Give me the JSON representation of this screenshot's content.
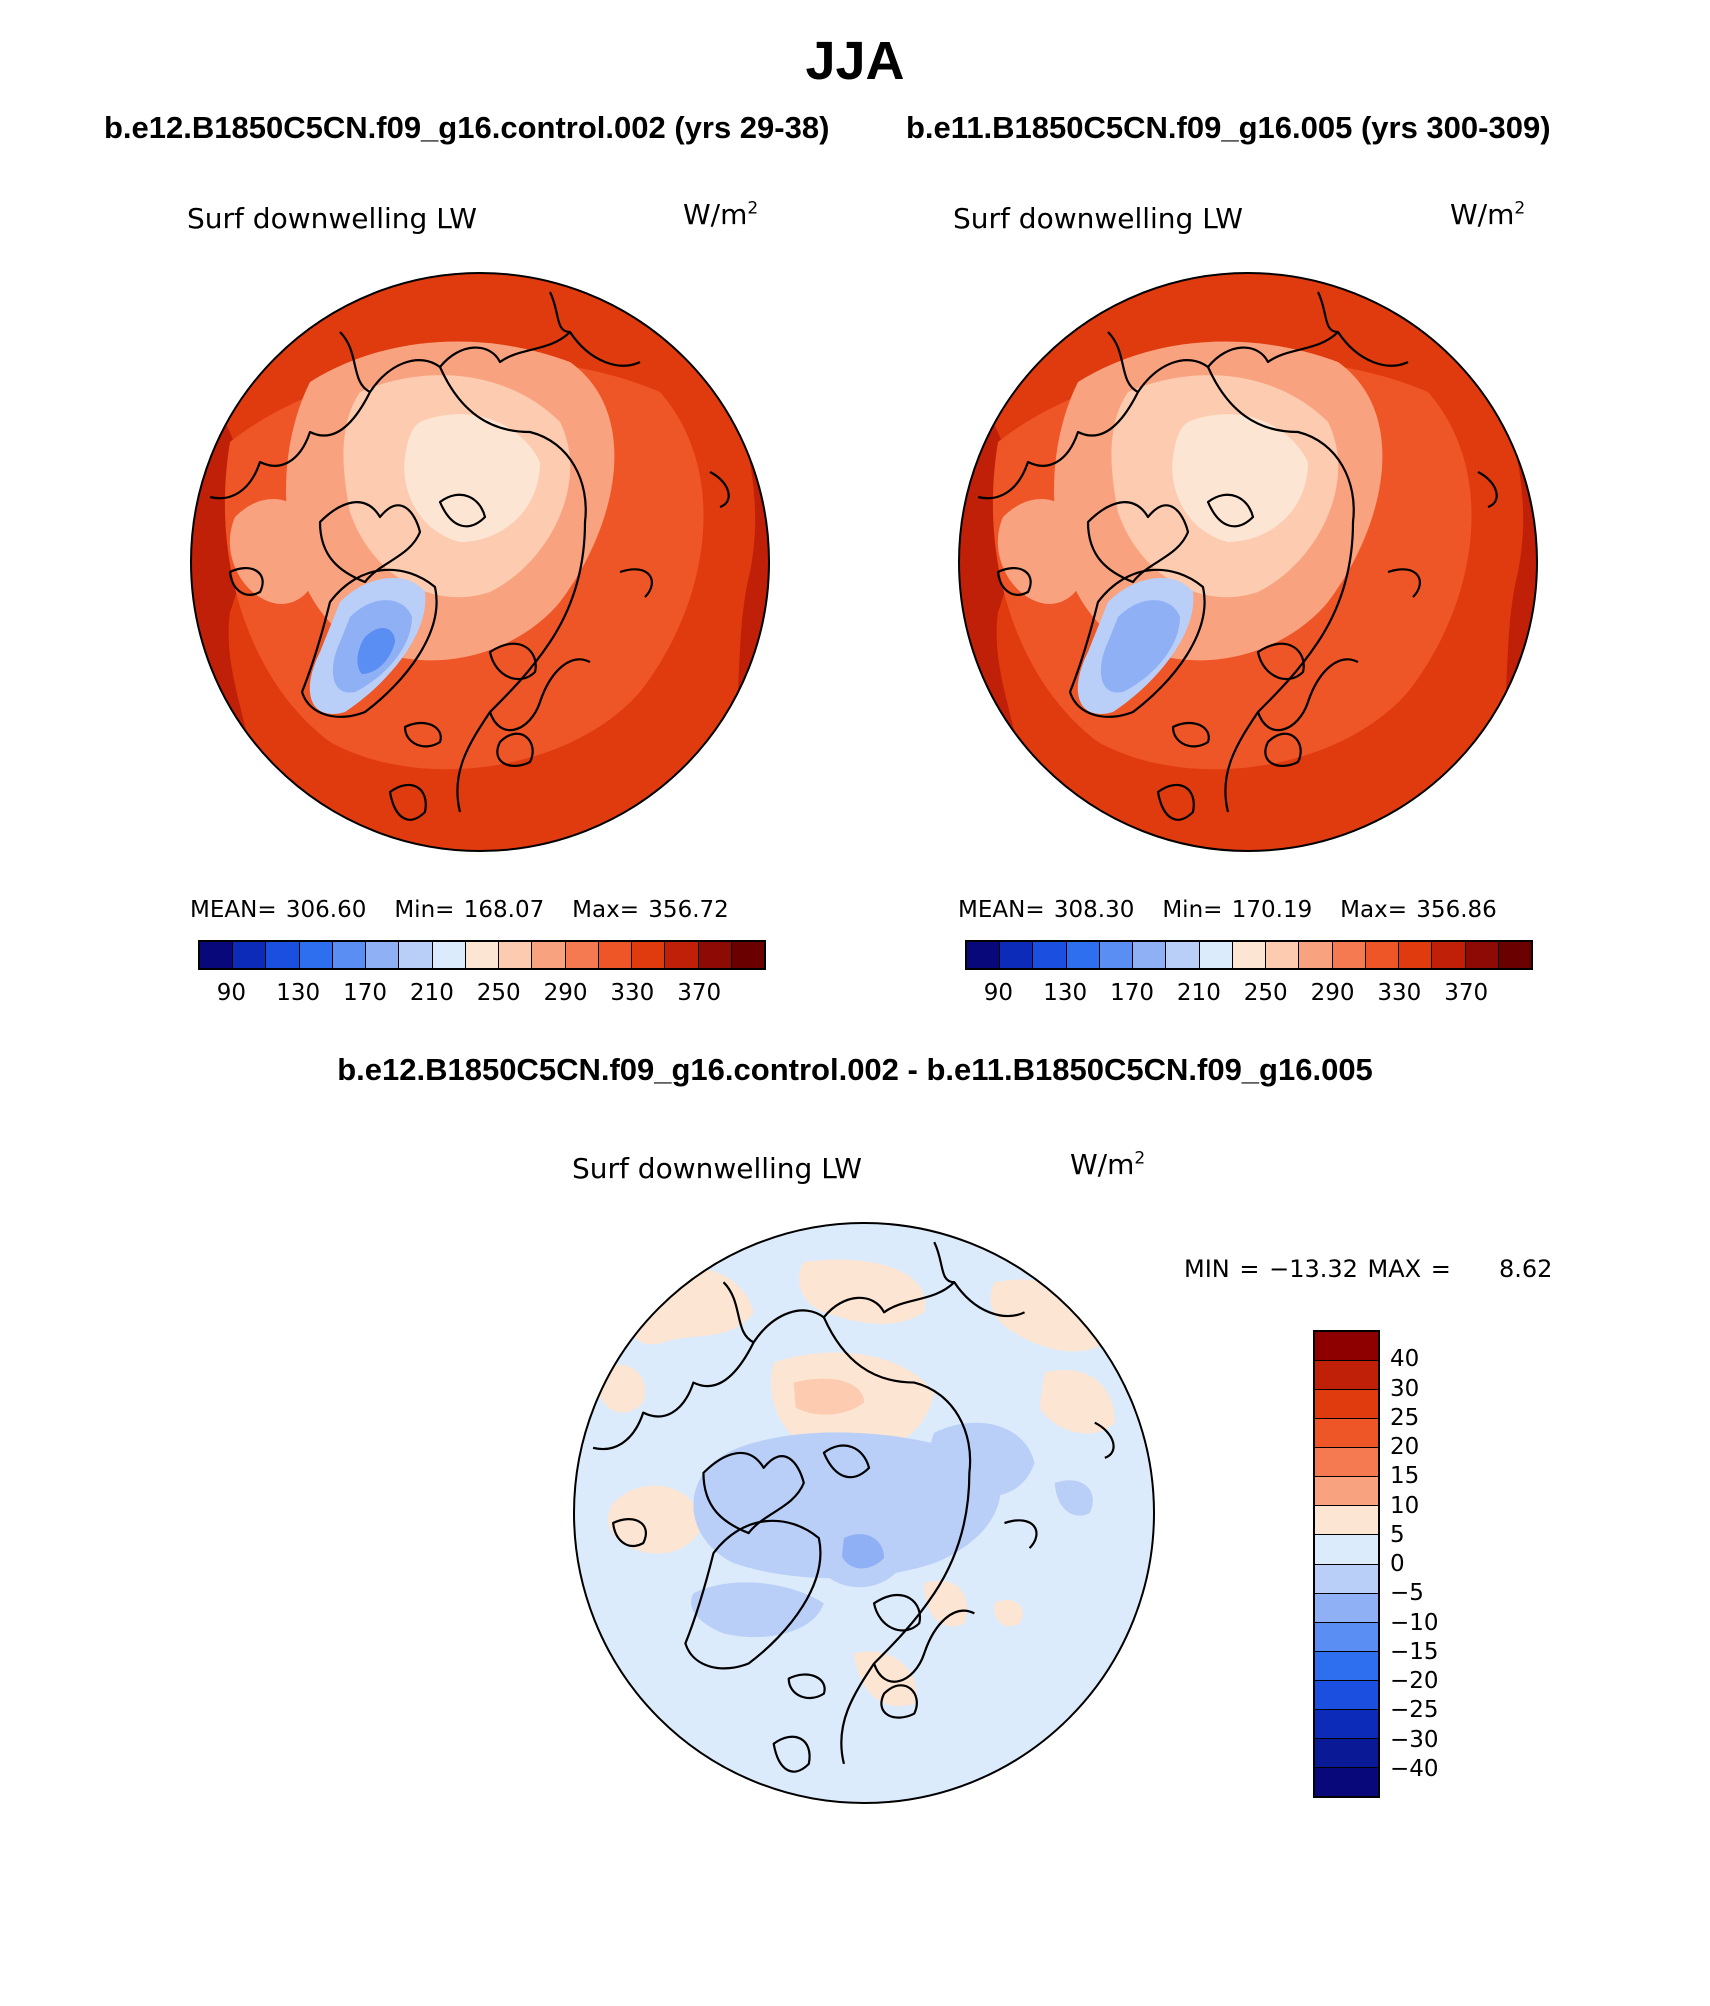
{
  "season": "JJA",
  "panels": [
    {
      "case": "b.e12.B1850C5CN.f09_g16.control.002 (yrs 29-38)",
      "variable": "Surf downwelling LW",
      "units": "W/m",
      "units_exp": "2",
      "mean_label": "MEAN=",
      "mean": "306.60",
      "min_label": "Min=",
      "min": "168.07",
      "max_label": "Max=",
      "max": "356.72"
    },
    {
      "case": "b.e11.B1850C5CN.f09_g16.005 (yrs 300-309)",
      "variable": "Surf downwelling LW",
      "units": "W/m",
      "units_exp": "2",
      "mean_label": "MEAN=",
      "mean": "308.30",
      "min_label": "Min=",
      "min": "170.19",
      "max_label": "Max=",
      "max": "356.86"
    }
  ],
  "abs_colorbar": {
    "colors": [
      "#08087a",
      "#0c2bb8",
      "#1a4fe0",
      "#2e6ff0",
      "#5a8ef2",
      "#8fb0f5",
      "#b9cff8",
      "#dcebfb",
      "#fde5d3",
      "#fccbb0",
      "#f9a27f",
      "#f57a52",
      "#ee5527",
      "#e03a0f",
      "#c02008",
      "#8e0a05",
      "#6b0000"
    ],
    "tick_labels": [
      "90",
      "130",
      "170",
      "210",
      "250",
      "290",
      "330",
      "370"
    ]
  },
  "diff": {
    "title": "b.e12.B1850C5CN.f09_g16.control.002 - b.e11.B1850C5CN.f09_g16.005",
    "variable": "Surf downwelling LW",
    "units": "W/m",
    "units_exp": "2",
    "minmax": "MIN = −13.32 MAX =     8.62",
    "colorbar": {
      "colors": [
        "#8e0000",
        "#c02008",
        "#e03a0f",
        "#ee5527",
        "#f57a52",
        "#f9a27f",
        "#fde5d3",
        "#dcebfb",
        "#b9cff8",
        "#8fb0f5",
        "#5a8ef2",
        "#2e6ff0",
        "#1a4fe0",
        "#0c2bb8",
        "#0a1a96",
        "#08087a"
      ],
      "tick_labels": [
        "40",
        "30",
        "25",
        "20",
        "15",
        "10",
        "5",
        "0",
        "−5",
        "−10",
        "−15",
        "−20",
        "−25",
        "−30",
        "−40"
      ]
    }
  },
  "colors": {
    "abs_background": "#e03a0f",
    "abs_mid": "#ee5527",
    "abs_light": "#f9a27f",
    "abs_lighter": "#fccbb0",
    "abs_palest": "#fde5d3",
    "abs_outer": "#c02008",
    "ice_light": "#b9cff8",
    "ice_mid": "#8fb0f5",
    "ice_dark": "#5a8ef2",
    "diff_background": "#dcebfb",
    "diff_positive": "#fde5d3",
    "diff_positive_strong": "#fccbb0",
    "diff_negative": "#b9cff8",
    "diff_negative_strong": "#8fb0f5"
  }
}
